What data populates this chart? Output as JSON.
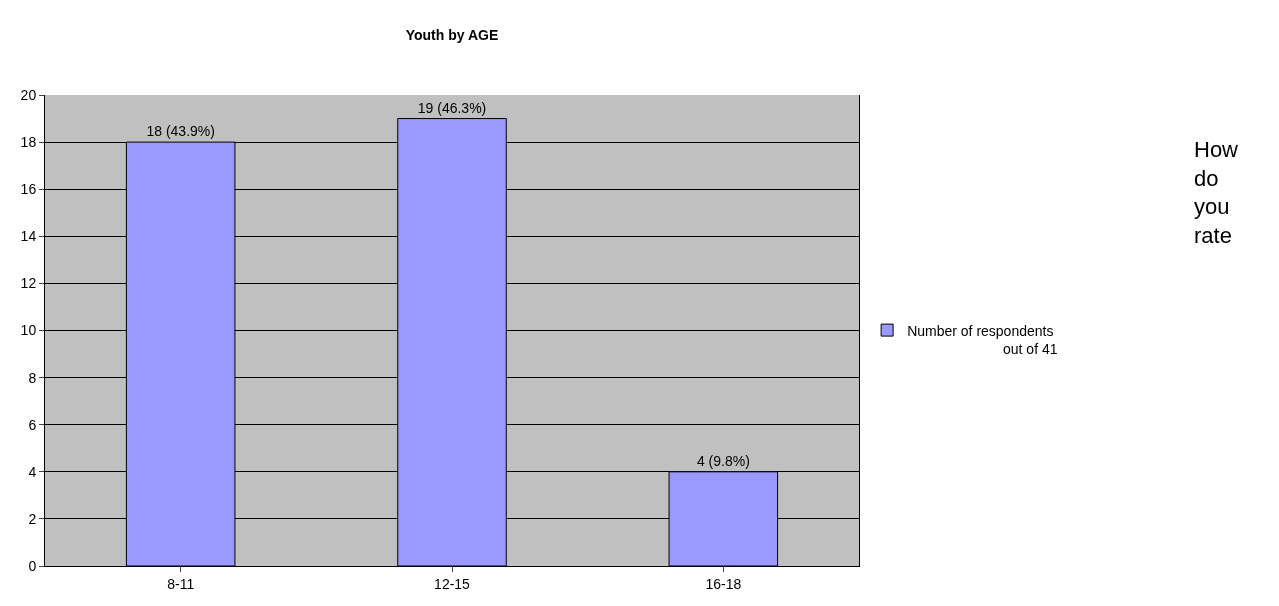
{
  "chart_data": {
    "type": "bar",
    "title": "Youth by AGE",
    "categories": [
      "8-11",
      "12-15",
      "16-18"
    ],
    "series": [
      {
        "name": "Number of respondents",
        "color": "#9999ff",
        "values": [
          18,
          19,
          4
        ],
        "value_labels": [
          "18 (43.9%)",
          "19 (46.3%)",
          "4 (9.8%)"
        ]
      }
    ],
    "ylim": [
      0,
      20
    ],
    "yticks": [
      0,
      2,
      4,
      6,
      8,
      10,
      12,
      14,
      16,
      18,
      20
    ],
    "grid": "y",
    "legend": "right",
    "annotations": [
      "How do you rate",
      "out of 41"
    ]
  }
}
